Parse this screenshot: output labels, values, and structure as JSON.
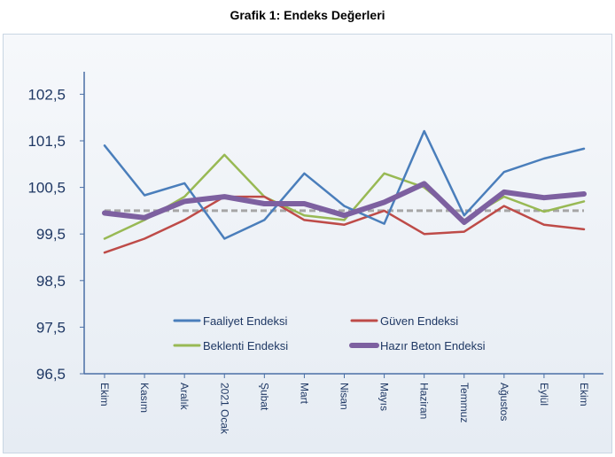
{
  "chart_data": {
    "type": "line",
    "title": "Grafik 1: Endeks Değerleri",
    "xlabel": "",
    "ylabel": "",
    "categories": [
      "Ekim",
      "Kasım",
      "Aralık",
      "2021 Ocak",
      "Şubat",
      "Mart",
      "Nisan",
      "Mayıs",
      "Haziran",
      "Temmuz",
      "Ağustos",
      "Eylül",
      "Ekim"
    ],
    "ylim": [
      96.5,
      103.2
    ],
    "yticks": [
      "102,5",
      "101,5",
      "100,5",
      "99,5",
      "98,5",
      "97,5",
      "96,5"
    ],
    "ytick_values": [
      102.5,
      101.5,
      100.5,
      99.5,
      98.5,
      97.5,
      96.5
    ],
    "reference_line": 100.0,
    "grid": false,
    "legend_position": "bottom-inside",
    "series": [
      {
        "name": "Faaliyet Endeksi",
        "color": "#4a7ebb",
        "values": [
          101.4,
          100.33,
          100.59,
          99.4,
          99.8,
          100.8,
          100.1,
          99.72,
          101.71,
          99.9,
          100.83,
          101.12,
          101.33
        ]
      },
      {
        "name": "Güven Endeksi",
        "color": "#be4b48",
        "values": [
          99.1,
          99.4,
          99.8,
          100.3,
          100.3,
          99.8,
          99.7,
          100.0,
          99.5,
          99.55,
          100.1,
          99.7,
          99.6
        ]
      },
      {
        "name": "Beklenti Endeksi",
        "color": "#98b954",
        "values": [
          99.4,
          99.8,
          100.3,
          101.2,
          100.3,
          99.9,
          99.8,
          100.8,
          100.5,
          99.8,
          100.3,
          99.98,
          100.2
        ]
      },
      {
        "name": "Hazır Beton Endeksi",
        "color": "#7d60a0",
        "values": [
          99.95,
          99.85,
          100.2,
          100.3,
          100.15,
          100.15,
          99.9,
          100.18,
          100.58,
          99.75,
          100.4,
          100.28,
          100.36
        ]
      }
    ]
  }
}
